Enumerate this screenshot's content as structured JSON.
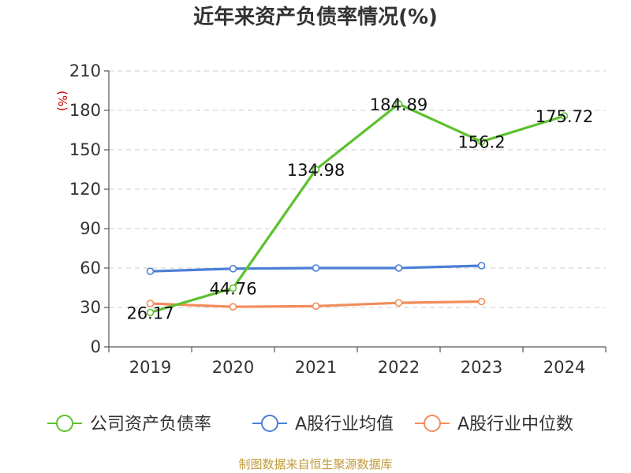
{
  "chart_data": {
    "type": "line",
    "title": "近年来资产负债率情况(%)",
    "ylabel": "(%)",
    "xlabel": "",
    "categories": [
      "2019",
      "2020",
      "2021",
      "2022",
      "2023",
      "2024"
    ],
    "yticks": [
      "0",
      "30",
      "60",
      "90",
      "120",
      "150",
      "180",
      "210"
    ],
    "ylim": [
      0,
      210
    ],
    "grid": true,
    "legend_position": "bottom",
    "series": [
      {
        "name": "公司资产负债率",
        "color": "#5cc12d",
        "values": [
          26.17,
          44.76,
          134.98,
          184.89,
          156.2,
          175.72
        ],
        "labels": [
          "26.17",
          "44.76",
          "134.98",
          "184.89",
          "156.2",
          "175.72"
        ]
      },
      {
        "name": "A股行业均值",
        "color": "#4b7fd6",
        "values": [
          57.5,
          59.5,
          60.0,
          60.0,
          61.8,
          null
        ]
      },
      {
        "name": "A股行业中位数",
        "color": "#f28c5a",
        "values": [
          33.0,
          30.5,
          31.0,
          33.5,
          34.5,
          null
        ]
      }
    ]
  },
  "source": "制图数据来自恒生聚源数据库"
}
